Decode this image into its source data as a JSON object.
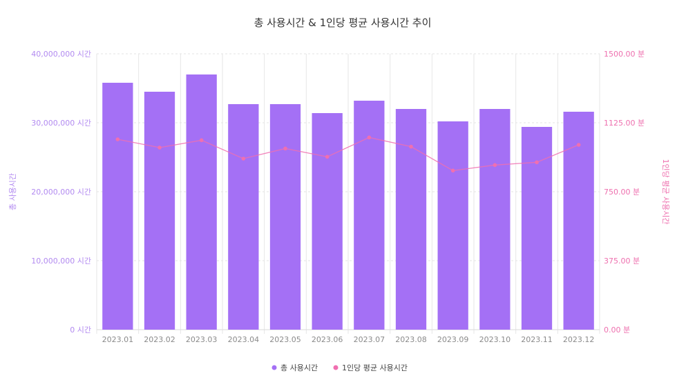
{
  "chart_data": {
    "type": "bar",
    "title": "총 사용시간 & 1인당 평균 사용시간 추이",
    "categories": [
      "2023.01",
      "2023.02",
      "2023.03",
      "2023.04",
      "2023.05",
      "2023.06",
      "2023.07",
      "2023.08",
      "2023.09",
      "2023.10",
      "2023.11",
      "2023.12"
    ],
    "series": [
      {
        "name": "총 사용시간",
        "type": "bar",
        "axis": "left",
        "color": "#a470f5",
        "values": [
          35800000,
          34500000,
          37000000,
          32700000,
          32700000,
          31400000,
          33200000,
          32000000,
          30200000,
          32000000,
          29400000,
          31600000
        ]
      },
      {
        "name": "1인당 평균 사용시간",
        "type": "line",
        "axis": "right",
        "color": "#f06fb0",
        "values": [
          1035,
          990,
          1030,
          930,
          985,
          940,
          1045,
          995,
          865,
          895,
          910,
          1005
        ]
      }
    ],
    "y_left": {
      "label": "총 사용시간",
      "ylim": [
        0,
        40000000
      ],
      "ticks": [
        0,
        10000000,
        20000000,
        30000000,
        40000000
      ],
      "tick_labels": [
        "0 시간",
        "10,000,000 시간",
        "20,000,000 시간",
        "30,000,000 시간",
        "40,000,000 시간"
      ],
      "color": "#b28af0"
    },
    "y_right": {
      "label": "1인당 평균 사용시간",
      "ylim": [
        0,
        1500
      ],
      "ticks": [
        0,
        375,
        750,
        1125,
        1500
      ],
      "tick_labels": [
        "0.00 분",
        "375.00 분",
        "750.00 분",
        "1125.00 분",
        "1500.00 분"
      ],
      "color": "#ee6fae"
    },
    "grid": true,
    "legend_position": "bottom-center"
  }
}
